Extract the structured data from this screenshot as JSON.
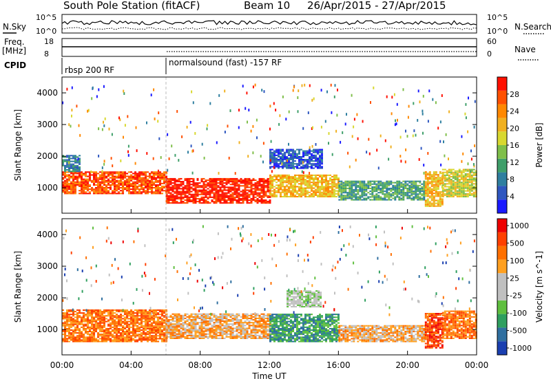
{
  "header": {
    "station": "South Pole Station (fitACF)",
    "beam": "Beam 10",
    "dates": "26/Apr/2015 - 27/Apr/2015"
  },
  "noise_panel": {
    "left_label": "N.Sky",
    "right_label": "N.Search",
    "left_ticks": [
      "10^5",
      "10^0"
    ],
    "right_ticks": [
      "10^5",
      "10^0"
    ]
  },
  "freq_panel": {
    "left_label_1": "Freq.",
    "left_label_2": "[MHz]",
    "right_label": "Nave",
    "left_ticks": [
      "18",
      "8"
    ],
    "right_ticks": [
      "60",
      "0"
    ]
  },
  "cpid": {
    "label": "CPID",
    "segments": [
      {
        "text": "rbsp 200 RF",
        "start_hour": 0
      },
      {
        "text": "normalsound (fast) -157 RF",
        "start_hour": 6
      }
    ]
  },
  "chart_data": [
    {
      "type": "heatmap",
      "quantity": "power",
      "ylabel": "Slant Range [km]",
      "ylim": [
        200,
        4500
      ],
      "yticks": [
        1000,
        2000,
        3000,
        4000
      ],
      "colorbar": {
        "label": "Power [dB]",
        "range": [
          0,
          32
        ],
        "ticks": [
          "4",
          "8",
          "12",
          "16",
          "20",
          "24",
          "28"
        ],
        "colors": [
          "#1a1aff",
          "#2f57c0",
          "#2f7fa0",
          "#3f9f6a",
          "#7fbf4a",
          "#d8d830",
          "#f0b020",
          "#ff8800",
          "#ff5000",
          "#ff1000"
        ]
      },
      "bands": [
        {
          "x0": 0,
          "x1": 6,
          "y0": 800,
          "y1": 1500,
          "level": 8
        },
        {
          "x0": 6,
          "x1": 12,
          "y0": 500,
          "y1": 1300,
          "level": 9
        },
        {
          "x0": 12,
          "x1": 16,
          "y0": 700,
          "y1": 1400,
          "level": 6
        },
        {
          "x0": 16,
          "x1": 21,
          "y0": 600,
          "y1": 1200,
          "level": 3
        },
        {
          "x0": 21,
          "x1": 22,
          "y0": 400,
          "y1": 1500,
          "level": 6
        },
        {
          "x0": 22,
          "x1": 24,
          "y0": 700,
          "y1": 1600,
          "level": 5
        },
        {
          "x0": 12,
          "x1": 15,
          "y0": 1600,
          "y1": 2200,
          "level": 1
        },
        {
          "x0": 0,
          "x1": 1,
          "y0": 1500,
          "y1": 2000,
          "level": 2
        }
      ]
    },
    {
      "type": "heatmap",
      "quantity": "velocity",
      "ylabel": "Slant Range [km]",
      "ylim": [
        200,
        4500
      ],
      "yticks": [
        1000,
        2000,
        3000,
        4000
      ],
      "colorbar": {
        "label": "Velocity [m s^-1]",
        "ticks": [
          "1000",
          "500",
          "100",
          "25",
          "-25",
          "-100",
          "-500",
          "-1000"
        ],
        "colors": [
          "#1a3fb0",
          "#2f6fa0",
          "#2f9f5f",
          "#5fbf3f",
          "#c0c0c0",
          "#c0c0c0",
          "#ffa020",
          "#ff7000",
          "#ff4000",
          "#ee0000"
        ]
      },
      "bands": [
        {
          "x0": 0,
          "x1": 6,
          "y0": 600,
          "y1": 1600,
          "level": 7
        },
        {
          "x0": 6,
          "x1": 12,
          "y0": 700,
          "y1": 1500,
          "level": 6
        },
        {
          "x0": 12,
          "x1": 16,
          "y0": 600,
          "y1": 1500,
          "level": 2
        },
        {
          "x0": 16,
          "x1": 21,
          "y0": 600,
          "y1": 1100,
          "level": 6
        },
        {
          "x0": 21,
          "x1": 22,
          "y0": 400,
          "y1": 1500,
          "level": 8
        },
        {
          "x0": 22,
          "x1": 24,
          "y0": 700,
          "y1": 1600,
          "level": 7
        },
        {
          "x0": 13,
          "x1": 15,
          "y0": 1700,
          "y1": 2200,
          "level": 4
        }
      ]
    }
  ],
  "time_axis": {
    "label": "Time UT",
    "ticks": [
      "00:00",
      "04:00",
      "08:00",
      "12:00",
      "16:00",
      "20:00",
      "00:00"
    ],
    "range_hours": [
      0,
      24
    ]
  },
  "colors": {
    "axis": "#000000",
    "divider": "#bbbbbb"
  }
}
